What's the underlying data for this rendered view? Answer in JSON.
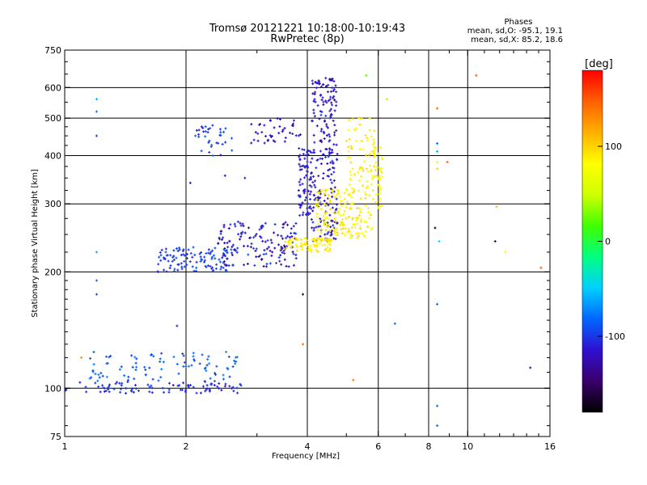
{
  "header": {
    "title": "Tromsø 20121221 10:18:00-10:19:43",
    "subtitle": "RwPretec (8p)"
  },
  "phases_box": {
    "title": "Phases",
    "line_o": "mean, sd,O: -95.1, 19.1",
    "line_x": "mean, sd,X:  85.2, 18.6"
  },
  "colorbar": {
    "unit_label": "[deg]",
    "ticks": [
      100,
      0,
      -100
    ],
    "tick_labels": [
      "100",
      "0",
      "-100"
    ],
    "range": [
      -180,
      180
    ],
    "colors": [
      "#000000",
      "#3a006a",
      "#3010d0",
      "#0066ff",
      "#00d0ff",
      "#00ff80",
      "#40ff00",
      "#d0ff00",
      "#ffff00",
      "#ffb000",
      "#ff6000",
      "#ff0000"
    ]
  },
  "chart_data": {
    "type": "scatter",
    "title": "Tromsø 20121221 10:18:00-10:19:43",
    "subtitle": "RwPretec (8p)",
    "xlabel": "Frequency [MHz]",
    "ylabel": "Stationary phase Virtual Height [km]",
    "x_scale": "log",
    "y_scale": "log",
    "xlim": [
      1,
      16
    ],
    "ylim": [
      75,
      750
    ],
    "x_ticks": [
      1,
      2,
      4,
      6,
      8,
      10,
      16
    ],
    "x_tick_labels": [
      "1",
      "2",
      "4",
      "6",
      "8",
      "10",
      "16"
    ],
    "y_ticks": [
      75,
      100,
      200,
      300,
      400,
      500,
      600,
      750
    ],
    "y_tick_labels": [
      "75",
      "100",
      "200",
      "300",
      "400",
      "500",
      "600",
      "750"
    ],
    "grid": true,
    "color_variable": "phase [deg]",
    "clusters": [
      {
        "f_range": [
          1.0,
          2.75
        ],
        "h_range": [
          97,
          104
        ],
        "phase": [
          -115,
          -95
        ],
        "n": 90
      },
      {
        "f_range": [
          1.15,
          2.7
        ],
        "h_range": [
          104,
          125
        ],
        "phase": [
          -100,
          -70
        ],
        "n": 90
      },
      {
        "f_range": [
          1.7,
          2.6
        ],
        "h_range": [
          200,
          232
        ],
        "phase": [
          -110,
          -85
        ],
        "n": 110
      },
      {
        "f_range": [
          2.4,
          3.8
        ],
        "h_range": [
          206,
          270
        ],
        "phase": [
          -140,
          -90
        ],
        "n": 150
      },
      {
        "f_range": [
          2.1,
          2.6
        ],
        "h_range": [
          400,
          480
        ],
        "phase": [
          -115,
          -80
        ],
        "n": 35
      },
      {
        "f_range": [
          2.9,
          3.9
        ],
        "h_range": [
          430,
          500
        ],
        "phase": [
          -130,
          -105
        ],
        "n": 40
      },
      {
        "f_range": [
          3.8,
          4.1
        ],
        "h_range": [
          280,
          420
        ],
        "phase": [
          -120,
          -100
        ],
        "n": 80
      },
      {
        "f_range": [
          4.1,
          4.75
        ],
        "h_range": [
          240,
          640
        ],
        "phase": [
          -130,
          -100
        ],
        "n": 240
      },
      {
        "f_range": [
          3.5,
          4.6
        ],
        "h_range": [
          225,
          245
        ],
        "phase": [
          80,
          100
        ],
        "n": 90
      },
      {
        "f_range": [
          4.2,
          5.8
        ],
        "h_range": [
          245,
          330
        ],
        "phase": [
          75,
          100
        ],
        "n": 170
      },
      {
        "f_range": [
          5.0,
          5.9
        ],
        "h_range": [
          330,
          500
        ],
        "phase": [
          75,
          100
        ],
        "n": 70
      },
      {
        "f_range": [
          5.8,
          6.15
        ],
        "h_range": [
          290,
          420
        ],
        "phase": [
          65,
          95
        ],
        "n": 45
      }
    ],
    "isolated_points": [
      {
        "x": 1.2,
        "y": 560,
        "phase": -60
      },
      {
        "x": 1.2,
        "y": 520,
        "phase": -75
      },
      {
        "x": 1.2,
        "y": 450,
        "phase": -95
      },
      {
        "x": 1.2,
        "y": 225,
        "phase": -60
      },
      {
        "x": 1.2,
        "y": 190,
        "phase": -80
      },
      {
        "x": 1.2,
        "y": 175,
        "phase": -90
      },
      {
        "x": 1.1,
        "y": 120,
        "phase": 130
      },
      {
        "x": 1.9,
        "y": 145,
        "phase": -110
      },
      {
        "x": 2.05,
        "y": 340,
        "phase": -120
      },
      {
        "x": 2.5,
        "y": 355,
        "phase": -120
      },
      {
        "x": 2.8,
        "y": 350,
        "phase": -110
      },
      {
        "x": 3.9,
        "y": 175,
        "phase": -160
      },
      {
        "x": 3.9,
        "y": 130,
        "phase": 140
      },
      {
        "x": 5.2,
        "y": 105,
        "phase": 140
      },
      {
        "x": 5.6,
        "y": 645,
        "phase": 20
      },
      {
        "x": 6.3,
        "y": 560,
        "phase": 40
      },
      {
        "x": 6.6,
        "y": 147,
        "phase": -80
      },
      {
        "x": 8.4,
        "y": 530,
        "phase": 140
      },
      {
        "x": 8.4,
        "y": 430,
        "phase": -80
      },
      {
        "x": 8.4,
        "y": 410,
        "phase": -60
      },
      {
        "x": 8.4,
        "y": 385,
        "phase": 60
      },
      {
        "x": 8.4,
        "y": 370,
        "phase": 100
      },
      {
        "x": 8.3,
        "y": 260,
        "phase": -170
      },
      {
        "x": 8.5,
        "y": 240,
        "phase": -50
      },
      {
        "x": 8.4,
        "y": 165,
        "phase": -80
      },
      {
        "x": 8.4,
        "y": 90,
        "phase": -80
      },
      {
        "x": 8.4,
        "y": 80,
        "phase": -80
      },
      {
        "x": 8.9,
        "y": 385,
        "phase": 150
      },
      {
        "x": 10.5,
        "y": 645,
        "phase": 150
      },
      {
        "x": 11.8,
        "y": 295,
        "phase": 110
      },
      {
        "x": 11.7,
        "y": 240,
        "phase": -150
      },
      {
        "x": 12.4,
        "y": 225,
        "phase": 90
      },
      {
        "x": 14.3,
        "y": 113,
        "phase": -130
      },
      {
        "x": 15.2,
        "y": 205,
        "phase": 150
      }
    ]
  }
}
